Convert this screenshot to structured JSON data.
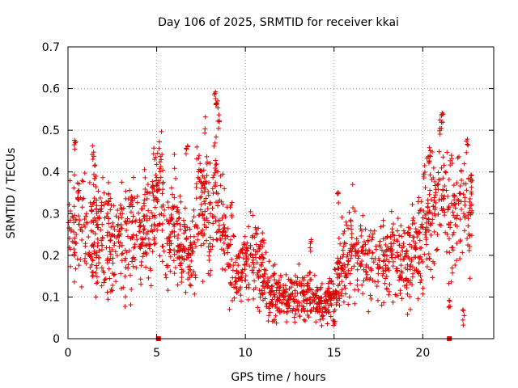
{
  "chart_data": {
    "type": "scatter",
    "title": "Day 106 of 2025, SRMTID for receiver kkai",
    "xlabel": "GPS time / hours",
    "ylabel": "SRMTID / TECUs",
    "xlim": [
      0,
      24
    ],
    "ylim": [
      0,
      0.7
    ],
    "xticks": [
      0,
      5,
      10,
      15,
      20
    ],
    "yticks": [
      0,
      0.1,
      0.2,
      0.3,
      0.4,
      0.5,
      0.6,
      0.7
    ],
    "grid": true,
    "marker": "+",
    "color": "#e00000",
    "gap_markers_x": [
      5.1,
      21.5
    ],
    "trend": [
      [
        0.0,
        0.27
      ],
      [
        0.5,
        0.27
      ],
      [
        1.0,
        0.25
      ],
      [
        1.5,
        0.25
      ],
      [
        2.0,
        0.24
      ],
      [
        2.5,
        0.23
      ],
      [
        3.0,
        0.24
      ],
      [
        3.5,
        0.24
      ],
      [
        4.0,
        0.25
      ],
      [
        4.5,
        0.27
      ],
      [
        5.0,
        0.33
      ],
      [
        5.3,
        0.35
      ],
      [
        5.5,
        0.2
      ],
      [
        6.0,
        0.28
      ],
      [
        6.5,
        0.2
      ],
      [
        7.0,
        0.18
      ],
      [
        7.3,
        0.3
      ],
      [
        7.7,
        0.35
      ],
      [
        8.0,
        0.27
      ],
      [
        8.3,
        0.35
      ],
      [
        8.7,
        0.27
      ],
      [
        9.0,
        0.2
      ],
      [
        9.5,
        0.15
      ],
      [
        10.0,
        0.18
      ],
      [
        10.5,
        0.2
      ],
      [
        11.0,
        0.15
      ],
      [
        11.5,
        0.1
      ],
      [
        12.0,
        0.1
      ],
      [
        12.5,
        0.1
      ],
      [
        13.0,
        0.1
      ],
      [
        13.5,
        0.1
      ],
      [
        14.0,
        0.09
      ],
      [
        14.5,
        0.08
      ],
      [
        15.0,
        0.1
      ],
      [
        15.5,
        0.18
      ],
      [
        16.0,
        0.22
      ],
      [
        16.5,
        0.2
      ],
      [
        17.0,
        0.18
      ],
      [
        17.5,
        0.18
      ],
      [
        18.0,
        0.19
      ],
      [
        18.5,
        0.2
      ],
      [
        19.0,
        0.17
      ],
      [
        19.5,
        0.2
      ],
      [
        20.0,
        0.25
      ],
      [
        20.5,
        0.3
      ],
      [
        21.0,
        0.35
      ],
      [
        21.3,
        0.33
      ],
      [
        21.6,
        0.28
      ],
      [
        22.0,
        0.28
      ],
      [
        22.5,
        0.3
      ],
      [
        22.8,
        0.3
      ]
    ],
    "spikes": [
      [
        0.4,
        0.48
      ],
      [
        0.6,
        0.36
      ],
      [
        1.4,
        0.47
      ],
      [
        1.5,
        0.42
      ],
      [
        3.6,
        0.36
      ],
      [
        4.8,
        0.38
      ],
      [
        5.2,
        0.44
      ],
      [
        6.7,
        0.47
      ],
      [
        7.4,
        0.44
      ],
      [
        8.3,
        0.6
      ],
      [
        8.4,
        0.58
      ],
      [
        8.5,
        0.54
      ],
      [
        9.2,
        0.33
      ],
      [
        11.0,
        0.26
      ],
      [
        13.7,
        0.24
      ],
      [
        15.2,
        0.36
      ],
      [
        15.0,
        0.05
      ],
      [
        20.1,
        0.41
      ],
      [
        20.4,
        0.46
      ],
      [
        21.0,
        0.53
      ],
      [
        21.1,
        0.55
      ],
      [
        21.6,
        0.44
      ],
      [
        22.5,
        0.48
      ],
      [
        22.7,
        0.41
      ],
      [
        21.5,
        0.1
      ],
      [
        22.3,
        0.07
      ]
    ]
  }
}
